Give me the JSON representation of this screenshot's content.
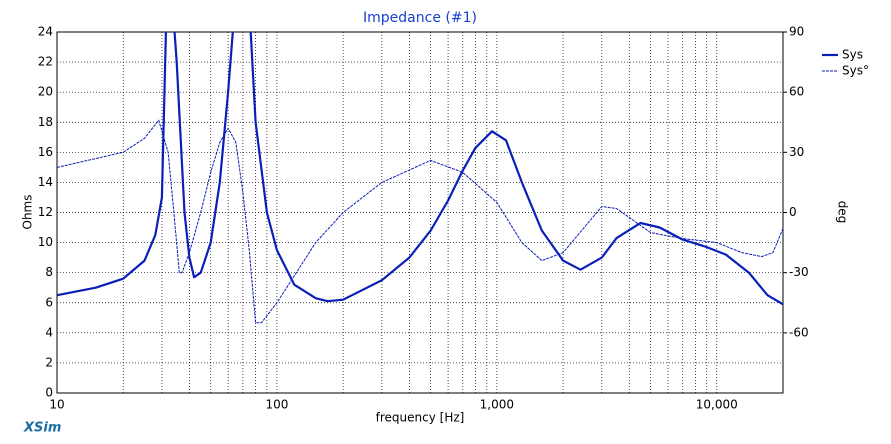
{
  "chart_data": {
    "type": "line",
    "title": "Impedance (#1)",
    "x_label": "frequency [Hz]",
    "y_label": "Ohms",
    "y2_label": "deg",
    "brand": "XSim",
    "x_scale": "log",
    "grid": true,
    "legend": "upper right",
    "xlim": [
      10,
      20000
    ],
    "xticks": [
      10,
      100,
      {
        "value": 1000,
        "label": "1,000"
      },
      {
        "value": 10000,
        "label": "10,000"
      }
    ],
    "xminorticks": [
      20,
      30,
      40,
      50,
      60,
      70,
      80,
      90,
      200,
      300,
      400,
      500,
      600,
      700,
      800,
      900,
      2000,
      3000,
      4000,
      5000,
      6000,
      7000,
      8000,
      9000
    ],
    "ylim": [
      0,
      24
    ],
    "yticks": [
      0,
      2,
      4,
      6,
      8,
      10,
      12,
      14,
      16,
      18,
      20,
      22,
      24
    ],
    "y2lim": [
      -90,
      90
    ],
    "y2ticks": [
      -60,
      -30,
      0,
      30,
      60,
      90
    ],
    "series": [
      {
        "name": "Sys",
        "color": "#0a1fb8",
        "dashed": false,
        "x": [
          10,
          15,
          20,
          25,
          28,
          30,
          32,
          35,
          38,
          40,
          42,
          45,
          50,
          55,
          60,
          63,
          68,
          76,
          80,
          90,
          100,
          120,
          150,
          170,
          200,
          300,
          400,
          500,
          600,
          700,
          800,
          950,
          1100,
          1300,
          1600,
          2000,
          2400,
          3000,
          3500,
          4500,
          5500,
          7000,
          9000,
          11000,
          14000,
          17000,
          20000
        ],
        "values": [
          6.5,
          7.0,
          7.6,
          8.8,
          10.5,
          13,
          30,
          22,
          12,
          9,
          7.7,
          8,
          10,
          14,
          20,
          24,
          30,
          24,
          18,
          12,
          9.5,
          7.2,
          6.3,
          6.1,
          6.2,
          7.5,
          9,
          10.8,
          12.8,
          14.8,
          16.3,
          17.4,
          16.8,
          14,
          10.8,
          8.8,
          8.2,
          9,
          10.3,
          11.3,
          11,
          10.2,
          9.7,
          9.2,
          8,
          6.5,
          5.9
        ]
      },
      {
        "name": "Sys°",
        "color": "#0a1fb8",
        "dashed": true,
        "axis": "y2",
        "x": [
          10,
          20,
          25,
          29,
          32,
          34,
          36,
          37,
          40,
          45,
          50,
          55,
          60,
          65,
          70,
          75,
          80,
          85,
          100,
          150,
          200,
          300,
          500,
          700,
          1000,
          1300,
          1600,
          2000,
          3000,
          3500,
          5000,
          7000,
          10000,
          13000,
          16000,
          18000,
          20000
        ],
        "values": [
          22.5,
          30,
          37,
          46,
          30,
          0,
          -30,
          -30,
          -20,
          0,
          20,
          35,
          42,
          35,
          10,
          -20,
          -55,
          -55,
          -45,
          -15,
          0,
          15,
          26,
          20,
          5,
          -15,
          -24,
          -20,
          3,
          2,
          -10,
          -13,
          -15,
          -20,
          -22,
          -20,
          -8
        ]
      }
    ]
  }
}
